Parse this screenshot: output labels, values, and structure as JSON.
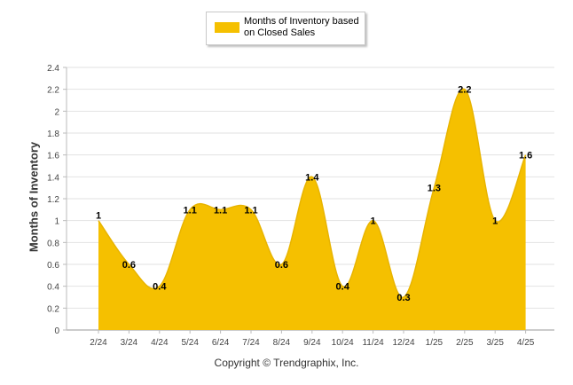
{
  "chart_data": {
    "type": "area",
    "ylabel": "Months of Inventory",
    "categories": [
      "2/24",
      "3/24",
      "4/24",
      "5/24",
      "6/24",
      "7/24",
      "8/24",
      "9/24",
      "10/24",
      "11/24",
      "12/24",
      "1/25",
      "2/25",
      "3/25",
      "4/25"
    ],
    "series": [
      {
        "name": "Months of Inventory based on Closed Sales",
        "values": [
          1,
          0.6,
          0.4,
          1.1,
          1.1,
          1.1,
          0.6,
          1.4,
          0.4,
          1,
          0.3,
          1.3,
          2.2,
          1,
          1.6
        ],
        "color": "#f5c000"
      }
    ],
    "yticks": [
      "0",
      "0.2",
      "0.4",
      "0.6",
      "0.8",
      "1",
      "1.2",
      "1.4",
      "1.6",
      "1.8",
      "2",
      "2.2",
      "2.4"
    ],
    "ylim": [
      0,
      2.4
    ],
    "grid": true,
    "legend_position": "top-center"
  },
  "legend": {
    "label": "Months of Inventory based on Closed Sales"
  },
  "footer": "Copyright © Trendgraphix, Inc."
}
